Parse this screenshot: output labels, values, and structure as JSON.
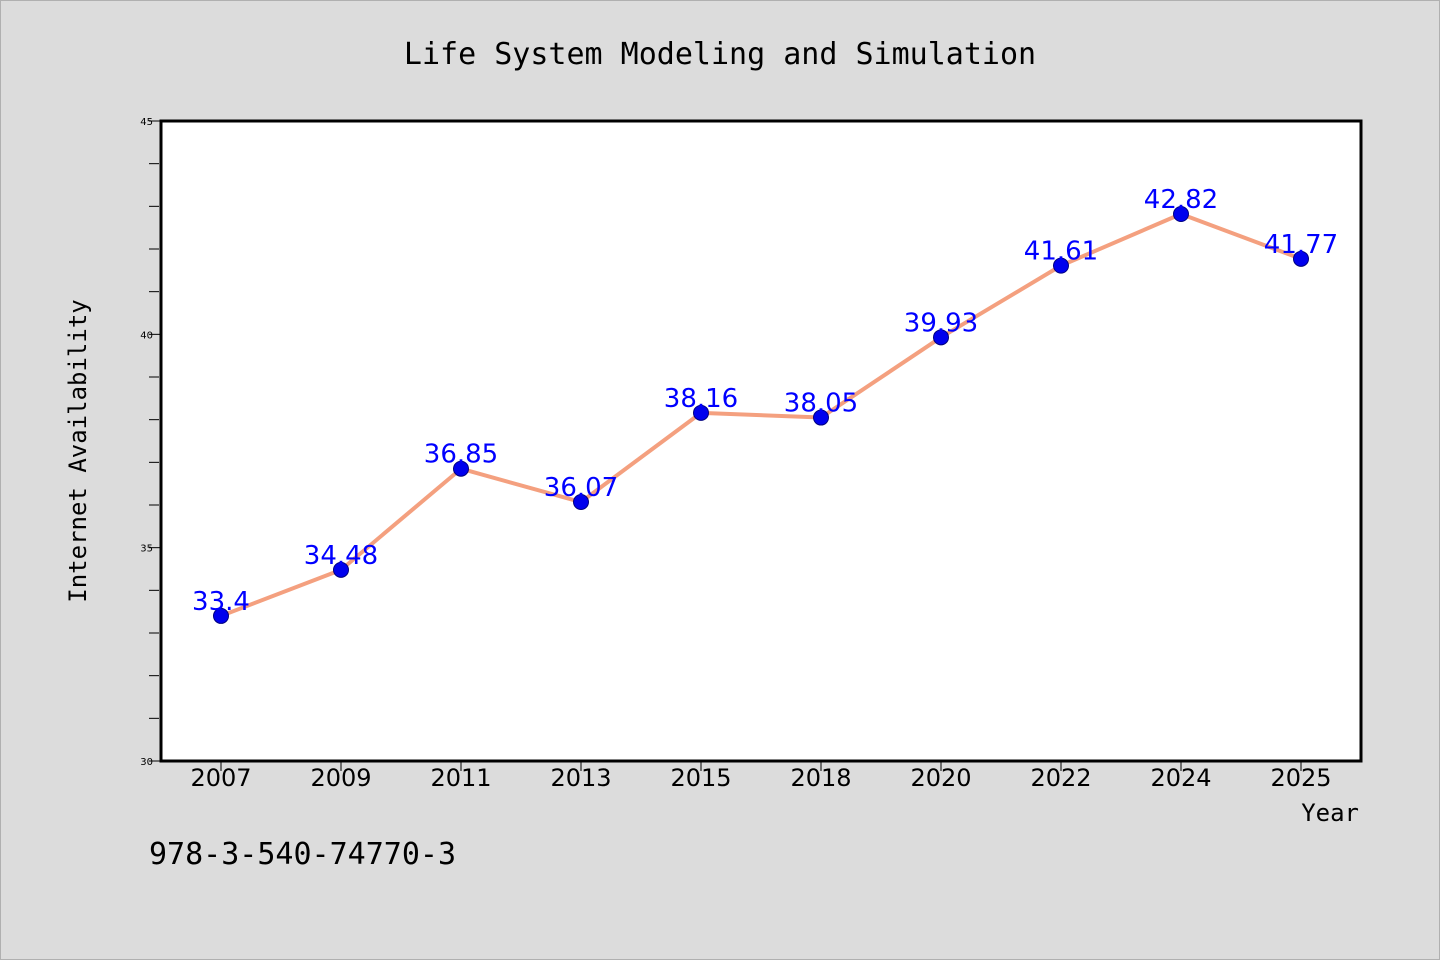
{
  "chart_data": {
    "type": "line",
    "title": "Life System Modeling and Simulation",
    "xlabel": "Year",
    "ylabel": "Internet Availability",
    "categories": [
      "2007",
      "2009",
      "2011",
      "2013",
      "2015",
      "2018",
      "2020",
      "2022",
      "2024",
      "2025"
    ],
    "series": [
      {
        "values": [
          33.4,
          34.48,
          36.85,
          36.07,
          38.16,
          38.05,
          39.93,
          41.61,
          42.82,
          41.77
        ],
        "data_labels": [
          "33.4",
          "34.48",
          "36.85",
          "36.07",
          "38.16",
          "38.05",
          "39.93",
          "41.61",
          "42.82",
          "41.77"
        ],
        "line_color": "#f4a07f",
        "marker_color": "#0000ee"
      }
    ],
    "ylim": [
      30,
      45
    ],
    "y_ticks": [
      "30",
      "35",
      "40",
      "45"
    ],
    "grid": false,
    "label_color": "#0000ff",
    "background_color": "#dcdcdc",
    "plot_background_color": "#ffffff"
  },
  "footnote": "978-3-540-74770-3"
}
